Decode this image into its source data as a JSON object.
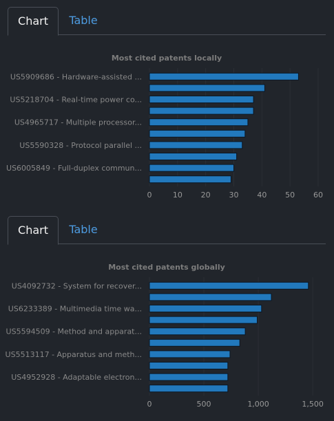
{
  "tabs": {
    "chart_label": "Chart",
    "table_label": "Table"
  },
  "chart_data": [
    {
      "type": "bar",
      "orientation": "horizontal",
      "title": "Most cited patents locally",
      "categories": [
        "US5909686 - Hardware-assisted ...",
        "",
        "US5218704 - Real-time power co...",
        "",
        "US4965717 - Multiple processor...",
        "",
        "US5590328 - Protocol parallel ...",
        "",
        "US6005849 - Full-duplex commun...",
        ""
      ],
      "values": [
        53,
        41,
        37,
        37,
        35,
        34,
        33,
        31,
        30,
        29
      ],
      "xlim": [
        0,
        60
      ],
      "xticks": [
        0,
        10,
        20,
        30,
        40,
        50,
        60
      ],
      "xtick_labels": [
        "0",
        "10",
        "20",
        "30",
        "40",
        "50",
        "60"
      ],
      "grid": true,
      "bar_color": "#2279bd"
    },
    {
      "type": "bar",
      "orientation": "horizontal",
      "title": "Most cited patents globally",
      "categories": [
        "US4092732 - System for recover...",
        "",
        "US6233389 - Multimedia time wa...",
        "",
        "US5594509 - Method and apparat...",
        "",
        "US5513117 - Apparatus and meth...",
        "",
        "US4952928 - Adaptable electron...",
        ""
      ],
      "values": [
        1460,
        1120,
        1030,
        990,
        880,
        830,
        740,
        720,
        720,
        720
      ],
      "xlim": [
        0,
        1550
      ],
      "xticks": [
        0,
        500,
        1000,
        1500
      ],
      "xtick_labels": [
        "0",
        "500",
        "1,000",
        "1,500"
      ],
      "grid": true,
      "bar_color": "#2279bd"
    }
  ]
}
